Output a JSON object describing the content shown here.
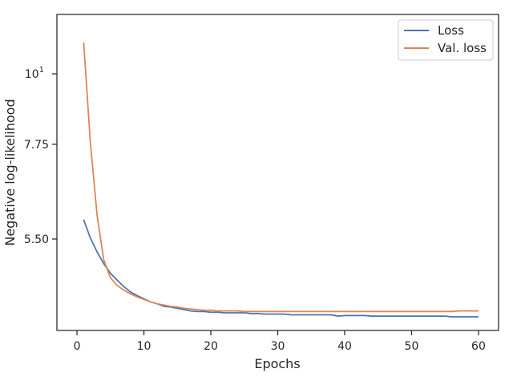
{
  "chart_data": {
    "type": "line",
    "title": "",
    "xlabel": "Epochs",
    "ylabel": "Negative log-likelihood",
    "xlim": [
      -3,
      63
    ],
    "ylim": [
      3.95,
      12.4
    ],
    "yscale": "log",
    "grid": false,
    "legend_position": "top-right",
    "x_ticks": [
      {
        "value": 0,
        "label": "0"
      },
      {
        "value": 10,
        "label": "10"
      },
      {
        "value": 20,
        "label": "20"
      },
      {
        "value": 30,
        "label": "30"
      },
      {
        "value": 40,
        "label": "40"
      },
      {
        "value": 50,
        "label": "50"
      },
      {
        "value": 60,
        "label": "60"
      }
    ],
    "y_ticks": [
      {
        "value": 5.5,
        "label": "5.50"
      },
      {
        "value": 7.75,
        "label": "7.75"
      },
      {
        "value": 10,
        "label": "10",
        "superscript": "1"
      }
    ],
    "x": [
      1,
      2,
      3,
      4,
      5,
      6,
      7,
      8,
      9,
      10,
      11,
      12,
      13,
      14,
      15,
      16,
      17,
      18,
      19,
      20,
      21,
      22,
      23,
      24,
      25,
      26,
      27,
      28,
      29,
      30,
      31,
      32,
      33,
      34,
      35,
      36,
      37,
      38,
      39,
      40,
      41,
      42,
      43,
      44,
      45,
      46,
      47,
      48,
      49,
      50,
      51,
      52,
      53,
      54,
      55,
      56,
      57,
      58,
      59,
      60
    ],
    "series": [
      {
        "name": "Loss",
        "color": "#4c72b0",
        "values": [
          5.9,
          5.52,
          5.25,
          5.03,
          4.86,
          4.74,
          4.63,
          4.54,
          4.48,
          4.43,
          4.38,
          4.35,
          4.31,
          4.3,
          4.28,
          4.26,
          4.24,
          4.23,
          4.23,
          4.22,
          4.22,
          4.21,
          4.21,
          4.21,
          4.21,
          4.2,
          4.2,
          4.19,
          4.19,
          4.19,
          4.19,
          4.18,
          4.18,
          4.18,
          4.18,
          4.18,
          4.18,
          4.18,
          4.16,
          4.17,
          4.17,
          4.17,
          4.17,
          4.16,
          4.16,
          4.16,
          4.16,
          4.16,
          4.16,
          4.16,
          4.16,
          4.16,
          4.16,
          4.16,
          4.16,
          4.15,
          4.15,
          4.15,
          4.15,
          4.15
        ]
      },
      {
        "name": "Val. loss",
        "color": "#dd8452",
        "values": [
          11.2,
          7.8,
          6.0,
          5.1,
          4.78,
          4.65,
          4.57,
          4.51,
          4.46,
          4.42,
          4.38,
          4.35,
          4.33,
          4.31,
          4.3,
          4.28,
          4.27,
          4.26,
          4.25,
          4.25,
          4.24,
          4.24,
          4.24,
          4.24,
          4.23,
          4.23,
          4.23,
          4.23,
          4.23,
          4.23,
          4.23,
          4.23,
          4.23,
          4.23,
          4.23,
          4.23,
          4.23,
          4.23,
          4.23,
          4.23,
          4.23,
          4.23,
          4.23,
          4.23,
          4.23,
          4.23,
          4.23,
          4.23,
          4.23,
          4.23,
          4.23,
          4.23,
          4.23,
          4.23,
          4.23,
          4.23,
          4.24,
          4.24,
          4.24,
          4.24
        ]
      }
    ]
  }
}
